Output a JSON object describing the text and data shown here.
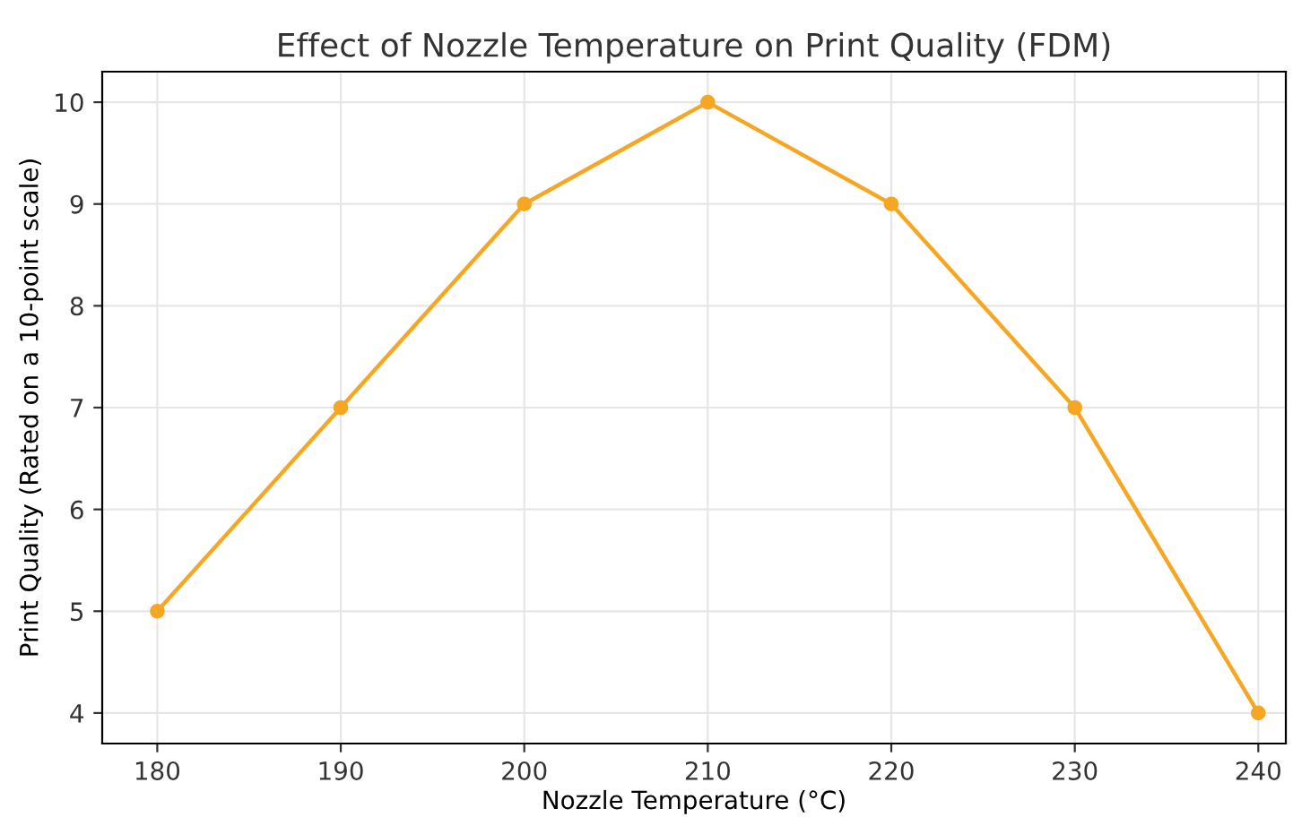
{
  "chart_data": {
    "type": "line",
    "title": "Effect of Nozzle Temperature on Print Quality (FDM)",
    "xlabel": "Nozzle Temperature (°C)",
    "ylabel": "Print Quality (Rated on a 10-point scale)",
    "x": [
      180,
      190,
      200,
      210,
      220,
      230,
      240
    ],
    "series": [
      {
        "color": "#f5a623",
        "values": [
          5,
          7,
          9,
          10,
          9,
          7,
          4
        ]
      }
    ],
    "xlim": [
      177,
      241.5
    ],
    "xticks": [
      180,
      190,
      200,
      210,
      220,
      230,
      240
    ],
    "ylim": [
      3.7,
      10.3
    ],
    "yticks": [
      4,
      5,
      6,
      7,
      8,
      9,
      10
    ],
    "grid": true,
    "marker": "circle",
    "line_style": "solid"
  }
}
